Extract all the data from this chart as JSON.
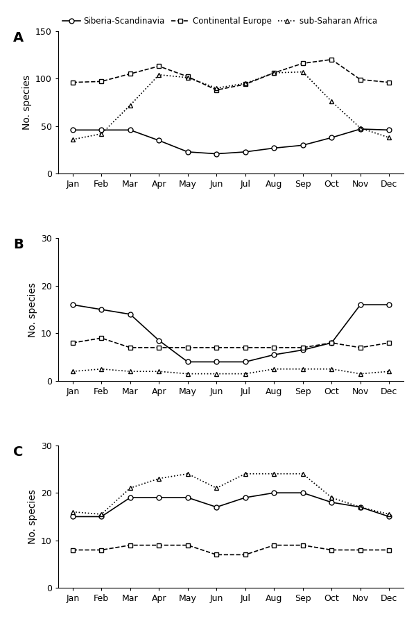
{
  "months": [
    "Jan",
    "Feb",
    "Mar",
    "Apr",
    "May",
    "Jun",
    "Jul",
    "Aug",
    "Sep",
    "Oct",
    "Nov",
    "Dec"
  ],
  "panel_A": {
    "siberia": [
      46,
      46,
      46,
      35,
      23,
      21,
      23,
      27,
      30,
      38,
      47,
      46
    ],
    "continental": [
      96,
      97,
      105,
      113,
      102,
      88,
      94,
      106,
      116,
      120,
      99,
      96
    ],
    "subsaharan": [
      36,
      42,
      72,
      104,
      101,
      90,
      95,
      106,
      107,
      76,
      48,
      38
    ],
    "ylabel": "No. species",
    "ylim": [
      0,
      150
    ],
    "yticks": [
      0,
      50,
      100,
      150
    ]
  },
  "panel_B": {
    "siberia": [
      16,
      15,
      14,
      8.5,
      4,
      4,
      4,
      5.5,
      6.5,
      8,
      16,
      16
    ],
    "continental": [
      8,
      9,
      7,
      7,
      7,
      7,
      7,
      7,
      7,
      8,
      7,
      8
    ],
    "subsaharan": [
      2,
      2.5,
      2,
      2,
      1.5,
      1.5,
      1.5,
      2.5,
      2.5,
      2.5,
      1.5,
      2
    ],
    "ylabel": "No. species",
    "ylim": [
      0,
      30
    ],
    "yticks": [
      0,
      10,
      20,
      30
    ]
  },
  "panel_C": {
    "siberia": [
      15,
      15,
      19,
      19,
      19,
      17,
      19,
      20,
      20,
      18,
      17,
      15
    ],
    "continental": [
      8,
      8,
      9,
      9,
      9,
      7,
      7,
      9,
      9,
      8,
      8,
      8
    ],
    "subsaharan": [
      16,
      15.5,
      21,
      23,
      24,
      21,
      24,
      24,
      24,
      19,
      17,
      15.5
    ],
    "ylabel": "No. species",
    "ylim": [
      0,
      30
    ],
    "yticks": [
      0,
      10,
      20,
      30
    ]
  },
  "legend_labels": [
    "Siberia-Scandinavia",
    "Continental Europe",
    "sub-Saharan Africa"
  ],
  "siberia_style": {
    "color": "#000000",
    "linestyle": "-",
    "marker": "o",
    "markersize": 5,
    "linewidth": 1.2
  },
  "continental_style": {
    "color": "#000000",
    "linestyle": "--",
    "marker": "s",
    "markersize": 5,
    "linewidth": 1.2
  },
  "subsaharan_style": {
    "color": "#000000",
    "linestyle": ":",
    "marker": "^",
    "markersize": 5,
    "linewidth": 1.2
  },
  "panel_labels": [
    "A",
    "B",
    "C"
  ],
  "figsize": [
    6.0,
    8.92
  ]
}
